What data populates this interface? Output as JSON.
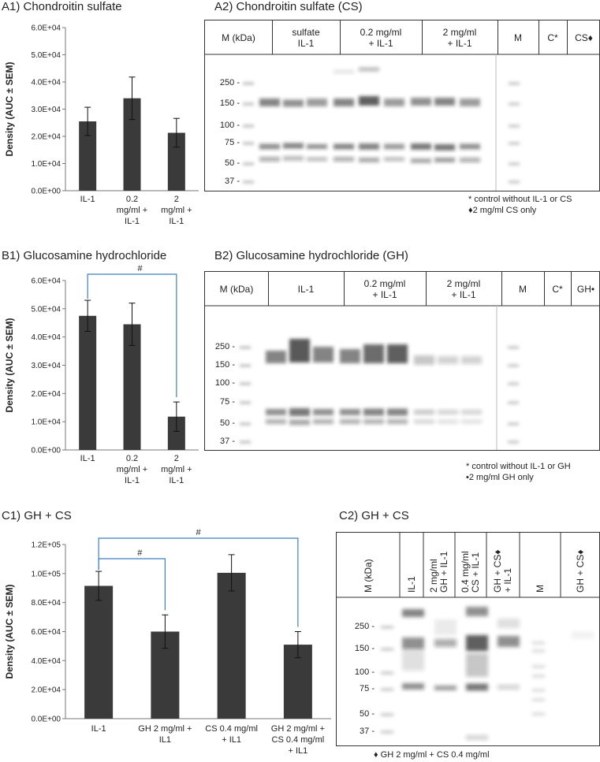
{
  "panels": {
    "a1": {
      "title": "A1) Chondroitin sulfate"
    },
    "a2": {
      "title": "A2) Chondroitin sulfate (CS)"
    },
    "b1": {
      "title": "B1) Glucosamine hydrochloride"
    },
    "b2": {
      "title": "B2) Glucosamine hydrochloride (GH)"
    },
    "c1": {
      "title": "C1) GH + CS"
    },
    "c2": {
      "title": "C2) GH + CS"
    }
  },
  "chart_data": [
    {
      "type": "bar",
      "title": "A1) Chondroitin sulfate",
      "ylabel": "Density (AUC ± SEM)",
      "ylim": [
        0,
        60000
      ],
      "yticks": [
        "0.0E+00",
        "1.0E+04",
        "2.0E+04",
        "3.0E+04",
        "4.0E+04",
        "5.0E+04",
        "6.0E+04"
      ],
      "categories": [
        [
          "IL-1"
        ],
        [
          "0.2",
          "mg/ml +",
          "IL-1"
        ],
        [
          "2",
          "mg/ml +",
          "IL-1"
        ]
      ],
      "values": [
        25500,
        34000,
        21300
      ],
      "errors": [
        5200,
        7800,
        5300
      ],
      "significance": []
    },
    {
      "type": "bar",
      "title": "B1) Glucosamine hydrochloride",
      "ylabel": "Density (AUC ± SEM)",
      "ylim": [
        0,
        60000
      ],
      "yticks": [
        "0.0E+00",
        "1.0E+04",
        "2.0E+04",
        "3.0E+04",
        "4.0E+04",
        "5.0E+04",
        "6.0E+04"
      ],
      "categories": [
        [
          "IL-1"
        ],
        [
          "0.2",
          "mg/ml +",
          "IL-1"
        ],
        [
          "2",
          "mg/ml +",
          "IL-1"
        ]
      ],
      "values": [
        47500,
        44500,
        11800
      ],
      "errors": [
        5500,
        7500,
        5200
      ],
      "significance": [
        {
          "from": 0,
          "to": 2,
          "label": "#"
        }
      ]
    },
    {
      "type": "bar",
      "title": "C1) GH + CS",
      "ylabel": "Density (AUC ± SEM)",
      "ylim": [
        0,
        120000
      ],
      "yticks": [
        "0.0E+00",
        "2.0E+04",
        "4.0E+04",
        "6.0E+04",
        "8.0E+04",
        "1.0E+05",
        "1.2E+05"
      ],
      "categories": [
        [
          "IL-1"
        ],
        [
          "GH 2 mg/ml +",
          "IL1"
        ],
        [
          "CS 0.4 mg/ml",
          "+ IL1"
        ],
        [
          "GH 2 mg/ml +",
          "CS 0.4 mg/ml",
          "+ IL1"
        ]
      ],
      "values": [
        91500,
        60000,
        100500,
        51000
      ],
      "errors": [
        10000,
        11500,
        12500,
        9000
      ],
      "significance": [
        {
          "from": 0,
          "to": 1,
          "label": "#"
        },
        {
          "from": 0,
          "to": 3,
          "label": "#"
        }
      ]
    }
  ],
  "blots": {
    "a2": {
      "headers": [
        "M (kDa)",
        "sulfate\nIL-1",
        "0.2 mg/ml\n+ IL-1",
        "2 mg/ml\n+ IL-1",
        "M",
        "C*",
        "CS♦"
      ],
      "markers": [
        "250 -",
        "150 -",
        "100 -",
        "75 -",
        "50 -",
        "37 -"
      ],
      "notes": [
        "* control without IL-1 or CS",
        "♦2 mg/ml CS only"
      ]
    },
    "b2": {
      "headers": [
        "M (kDa)",
        "IL-1",
        "0.2 mg/ml\n+ IL-1",
        "2 mg/ml\n+ IL-1",
        "M",
        "C*",
        "GH•"
      ],
      "markers": [
        "250 -",
        "150 -",
        "100 -",
        "75 -",
        "50 -",
        "37 -"
      ],
      "notes": [
        "* control without IL-1 or GH",
        "•2 mg/ml GH  only"
      ]
    },
    "c2": {
      "headers": [
        "M (kDa)",
        "IL-1",
        "2 mg/ml\nGH + IL-1",
        "0.4 mg/ml\nCS + IL-1",
        "GH + CS♦\n+ IL-1",
        "M",
        "GH + CS♦"
      ],
      "markers": [
        "250 -",
        "150 -",
        "100 -",
        "75 -",
        "50 -",
        "37 -"
      ],
      "notes": [
        "♦ GH 2 mg/ml + CS 0.4 mg/ml"
      ]
    }
  },
  "colors": {
    "bar": "#3a3a3a",
    "bracket": "#3f7fbf",
    "band": "#202020"
  }
}
